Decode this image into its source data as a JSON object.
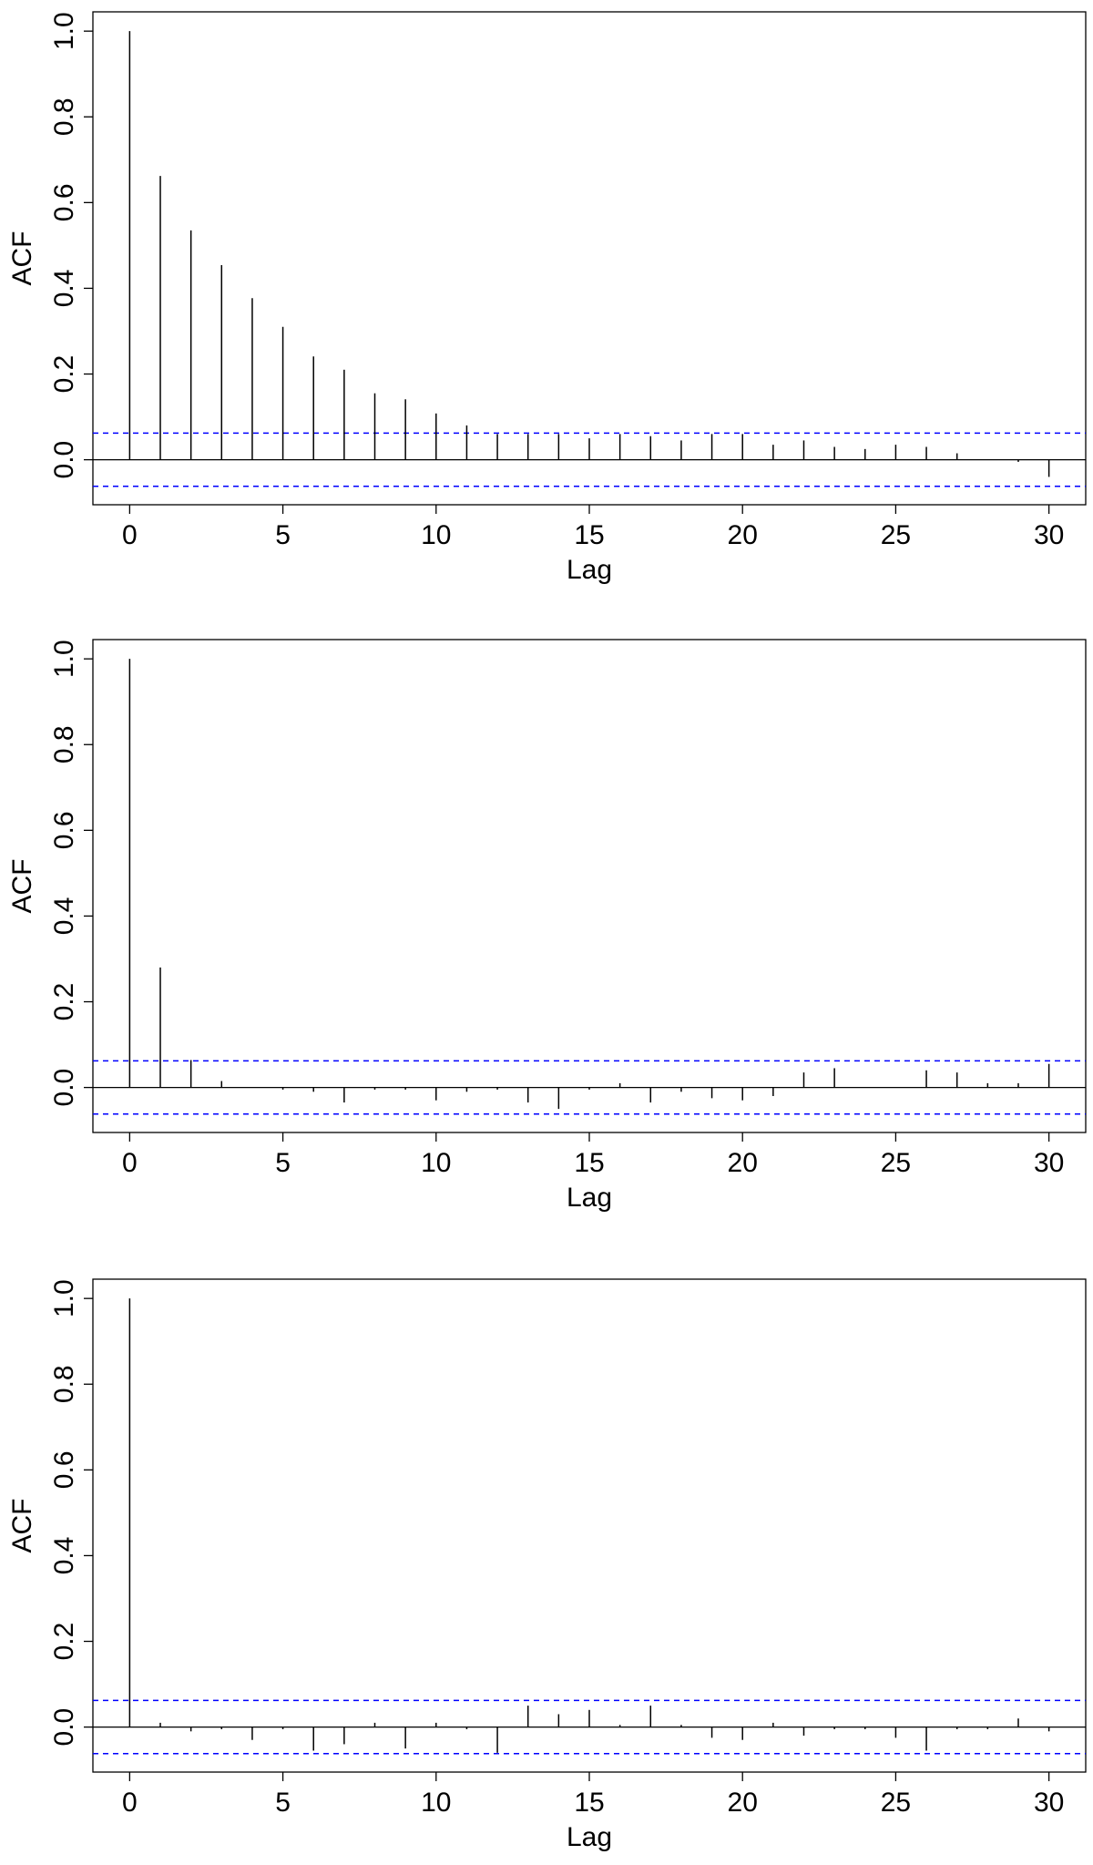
{
  "chart_data": [
    {
      "type": "bar",
      "xlabel": "Lag",
      "ylabel": "ACF",
      "color": "#000000",
      "ci": 0.062,
      "ci_color": "#0000ff",
      "x": [
        0,
        1,
        2,
        3,
        4,
        5,
        6,
        7,
        8,
        9,
        10,
        11,
        12,
        13,
        14,
        15,
        16,
        17,
        18,
        19,
        20,
        21,
        22,
        23,
        24,
        25,
        26,
        27,
        28,
        29,
        30
      ],
      "values": [
        1,
        0.662,
        0.535,
        0.454,
        0.377,
        0.31,
        0.241,
        0.21,
        0.155,
        0.141,
        0.108,
        0.08,
        0.06,
        0.06,
        0.06,
        0.05,
        0.06,
        0.055,
        0.045,
        0.06,
        0.06,
        0.035,
        0.045,
        0.03,
        0.025,
        0.035,
        0.03,
        0.015,
        0.0,
        -0.005,
        -0.04
      ],
      "xlim": [
        -1.2,
        31.2
      ],
      "ylim": [
        -0.105,
        1.045
      ],
      "xticks": [
        0,
        5,
        10,
        15,
        20,
        25,
        30
      ],
      "yticks": [
        {
          "value": 0,
          "label": "0.0"
        },
        0.2,
        0.4,
        0.6,
        0.8,
        {
          "value": 1,
          "label": "1.0"
        }
      ]
    },
    {
      "type": "bar",
      "xlabel": "Lag",
      "ylabel": "ACF",
      "color": "#000000",
      "ci": 0.062,
      "ci_color": "#0000ff",
      "x": [
        0,
        1,
        2,
        3,
        4,
        5,
        6,
        7,
        8,
        9,
        10,
        11,
        12,
        13,
        14,
        15,
        16,
        17,
        18,
        19,
        20,
        21,
        22,
        23,
        24,
        25,
        26,
        27,
        28,
        29,
        30
      ],
      "values": [
        1,
        0.28,
        0.064,
        0.015,
        0.0,
        -0.005,
        -0.01,
        -0.035,
        -0.005,
        -0.005,
        -0.03,
        -0.01,
        -0.005,
        -0.035,
        -0.05,
        -0.005,
        0.01,
        -0.035,
        -0.01,
        -0.025,
        -0.03,
        -0.02,
        0.035,
        0.045,
        0.0,
        0.0,
        0.04,
        0.035,
        0.01,
        0.01,
        0.055
      ],
      "xlim": [
        -1.2,
        31.2
      ],
      "ylim": [
        -0.105,
        1.045
      ],
      "xticks": [
        0,
        5,
        10,
        15,
        20,
        25,
        30
      ],
      "yticks": [
        {
          "value": 0,
          "label": "0.0"
        },
        0.2,
        0.4,
        0.6,
        0.8,
        {
          "value": 1,
          "label": "1.0"
        }
      ]
    },
    {
      "type": "bar",
      "xlabel": "Lag",
      "ylabel": "ACF",
      "color": "#000000",
      "ci": 0.062,
      "ci_color": "#0000ff",
      "x": [
        0,
        1,
        2,
        3,
        4,
        5,
        6,
        7,
        8,
        9,
        10,
        11,
        12,
        13,
        14,
        15,
        16,
        17,
        18,
        19,
        20,
        21,
        22,
        23,
        24,
        25,
        26,
        27,
        28,
        29,
        30
      ],
      "values": [
        1,
        0.01,
        -0.01,
        -0.005,
        -0.03,
        -0.005,
        -0.055,
        -0.04,
        0.01,
        -0.05,
        0.01,
        -0.005,
        -0.06,
        0.05,
        0.03,
        0.04,
        0.005,
        0.05,
        0.005,
        -0.025,
        -0.03,
        0.01,
        -0.02,
        -0.005,
        -0.005,
        -0.025,
        -0.055,
        -0.005,
        -0.005,
        0.02,
        -0.01
      ],
      "xlim": [
        -1.2,
        31.2
      ],
      "ylim": [
        -0.105,
        1.045
      ],
      "xticks": [
        0,
        5,
        10,
        15,
        20,
        25,
        30
      ],
      "yticks": [
        {
          "value": 0,
          "label": "0.0"
        },
        0.2,
        0.4,
        0.6,
        0.8,
        {
          "value": 1,
          "label": "1.0"
        }
      ]
    }
  ]
}
